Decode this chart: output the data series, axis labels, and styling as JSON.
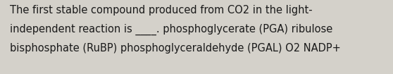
{
  "text_lines": [
    "The first stable compound produced from CO2 in the light-",
    "independent reaction is ____.​ phosphoglycerate (PGA) ribulose",
    "bisphosphate (RuBP) ​phosphoglyceraldehyde (PGAL) O2 NADP+"
  ],
  "background_color": "#d4d1ca",
  "text_color": "#1a1a1a",
  "font_size": 10.5,
  "fig_width": 5.58,
  "fig_height": 1.05,
  "dpi": 100
}
